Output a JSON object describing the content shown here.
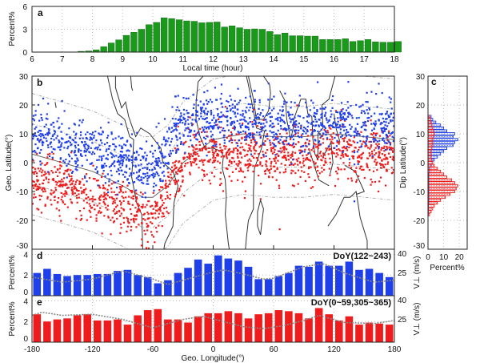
{
  "colors": {
    "green": "#1a9a1a",
    "blue": "#1f3fe8",
    "red": "#ee1c1c",
    "curve": "#888888",
    "coast": "#333333"
  },
  "chart_data": [
    {
      "id": "a",
      "type": "bar",
      "panel_label": "a",
      "xlabel": "Local time (hour)",
      "ylabel": "Percent%",
      "xlim": [
        6,
        18
      ],
      "ylim": [
        0,
        6
      ],
      "xticks": [
        "6",
        "7",
        "8",
        "9",
        "10",
        "11",
        "12",
        "13",
        "14",
        "15",
        "16",
        "17",
        "18"
      ],
      "yticks": [
        "0",
        "3",
        "6"
      ],
      "bin_width_hours": 0.25,
      "x_start": 7.5,
      "values": [
        0.1,
        0.15,
        0.3,
        0.7,
        1.2,
        1.6,
        2.2,
        2.6,
        3.0,
        3.6,
        3.9,
        4.5,
        4.4,
        4.25,
        4.1,
        4.05,
        3.85,
        3.9,
        3.95,
        3.3,
        3.45,
        3.2,
        3.0,
        3.05,
        3.0,
        2.7,
        2.3,
        2.5,
        2.15,
        2.15,
        2.1,
        2.1,
        1.65,
        1.65,
        1.65,
        1.75,
        1.4,
        1.5,
        1.65,
        1.35,
        1.3,
        1.3,
        1.4
      ]
    },
    {
      "id": "b",
      "type": "scatter",
      "panel_label": "b",
      "ylabel": "Geo. Latitude(°)",
      "xlim": [
        -180,
        180
      ],
      "ylim": [
        -30,
        30
      ],
      "yticks": [
        "-30",
        "-20",
        "-10",
        "0",
        "10",
        "20",
        "30"
      ],
      "series": [
        {
          "name": "DoY(122~243)",
          "color": "blue",
          "band_center": {
            "lon": [
              -180,
              -150,
              -120,
              -90,
              -70,
              -60,
              -50,
              -40,
              -20,
              0,
              30,
              60,
              90,
              120,
              150,
              180
            ],
            "lat": [
              10,
              7,
              4,
              1,
              -3,
              -4,
              2,
              12,
              15,
              15,
              14,
              13,
              13,
              14,
              13,
              12
            ]
          },
          "spread_deg": 4.5
        },
        {
          "name": "DoY(0~59,305~365)",
          "color": "red",
          "band_center": {
            "lon": [
              -180,
              -150,
              -120,
              -90,
              -70,
              -60,
              -50,
              -40,
              -20,
              0,
              30,
              60,
              90,
              120,
              150,
              180
            ],
            "lat": [
              -6,
              -9,
              -12,
              -15,
              -19,
              -20,
              -14,
              -4,
              2,
              4,
              3,
              2,
              3,
              4,
              3,
              2
            ]
          },
          "spread_deg": 4.5
        }
      ],
      "dip_equator": {
        "lon": [
          -180,
          -150,
          -120,
          -90,
          -70,
          -60,
          -45,
          -30,
          0,
          30,
          60,
          90,
          120,
          150,
          180
        ],
        "lat": [
          3,
          0,
          -3,
          -8,
          -12,
          -12,
          -8,
          0,
          8,
          10,
          9,
          9,
          10,
          9,
          8
        ]
      }
    },
    {
      "id": "c",
      "type": "bar",
      "orientation": "horizontal",
      "panel_label": "c",
      "ylabel": "Dip Latitude(°)",
      "xlabel": "Percent%",
      "xlim": [
        0,
        25
      ],
      "ylim": [
        -30,
        30
      ],
      "xticks": [
        "0",
        "10",
        "20"
      ],
      "yticks": [
        "-30",
        "-20",
        "-10",
        "0",
        "10",
        "20",
        "30"
      ],
      "lat": [
        16,
        15,
        14,
        13,
        12,
        11,
        10,
        9,
        8,
        7,
        6,
        5,
        4,
        3,
        2,
        1,
        0,
        -1,
        -2,
        -3,
        -4,
        -5,
        -6,
        -7,
        -8,
        -9,
        -10,
        -11,
        -12,
        -13,
        -14,
        -15,
        -16,
        -17,
        -18
      ],
      "series": [
        {
          "name": "blue",
          "values": [
            2,
            3,
            5,
            8,
            10,
            12,
            17,
            16,
            19,
            17,
            16,
            12,
            10,
            8,
            6,
            4,
            3,
            2,
            1,
            1,
            0.5,
            0.5,
            0.5,
            0.5,
            0.5,
            0.5,
            0.5,
            0.5,
            0.5,
            0.5,
            0.5,
            0.3,
            0.3,
            0.2,
            0.2
          ]
        },
        {
          "name": "red",
          "values": [
            1,
            1.5,
            2,
            2.5,
            3,
            3.5,
            4,
            3.5,
            3,
            3,
            3,
            2.5,
            2,
            2,
            2,
            2.5,
            3,
            4,
            6,
            8,
            10,
            12,
            15,
            17,
            19,
            18,
            17,
            14,
            11,
            8,
            6,
            4,
            3,
            2,
            1
          ]
        }
      ]
    },
    {
      "id": "d",
      "type": "bar",
      "panel_label": "d",
      "title": "DoY(122~243)",
      "ylabel": "Percent%",
      "right_ylabel": "V⊥ (m/s)",
      "xlim": [
        -180,
        180
      ],
      "ylim": [
        0,
        4.5
      ],
      "right_ylim": [
        10,
        40
      ],
      "yticks": [
        "0",
        "2",
        "4"
      ],
      "right_yticks": [
        "25",
        "40"
      ],
      "bin_width_deg": 10,
      "values": [
        2.2,
        2.6,
        2.1,
        1.9,
        2.0,
        2.0,
        2.1,
        2.1,
        2.4,
        2.5,
        2.0,
        1.8,
        1.2,
        1.5,
        2.2,
        2.7,
        3.5,
        3.1,
        3.9,
        3.6,
        3.4,
        2.8,
        1.6,
        1.6,
        1.9,
        2.2,
        2.9,
        2.8,
        3.3,
        2.9,
        2.9,
        3.3,
        2.5,
        2.6,
        2.2,
        1.8
      ],
      "v_perp": {
        "lon": [
          -180,
          -150,
          -120,
          -90,
          -60,
          -45,
          -30,
          0,
          10,
          30,
          50,
          60,
          90,
          110,
          130,
          160,
          180
        ],
        "v": [
          22,
          18.7,
          20.7,
          26,
          20.7,
          17.3,
          20,
          25.3,
          26.7,
          24,
          20.7,
          21.3,
          28.7,
          30.7,
          24.7,
          18.7,
          20
        ]
      }
    },
    {
      "id": "e",
      "type": "bar",
      "panel_label": "e",
      "title": "DoY(0~59,305~365)",
      "ylabel": "Percent%",
      "right_ylabel": "V⊥ (m/s)",
      "xlabel": "Geo. Longitude(°)",
      "xlim": [
        -180,
        180
      ],
      "ylim": [
        0,
        4.5
      ],
      "right_ylim": [
        10,
        40
      ],
      "yticks": [
        "0",
        "2",
        "4"
      ],
      "right_yticks": [
        "25",
        "40"
      ],
      "xticks": [
        "-180",
        "-120",
        "-60",
        "0",
        "60",
        "120",
        "180"
      ],
      "bin_width_deg": 10,
      "values": [
        2.7,
        2.0,
        2.2,
        2.3,
        2.6,
        2.7,
        2.1,
        2.1,
        2.2,
        1.7,
        2.6,
        3.1,
        3.2,
        2.2,
        2.2,
        1.9,
        2.5,
        2.8,
        2.8,
        3.0,
        2.8,
        2.3,
        2.7,
        2.8,
        3.1,
        3.0,
        2.8,
        2.3,
        3.3,
        2.7,
        2.1,
        2.5,
        1.7,
        1.9,
        1.8,
        1.7
      ],
      "v_perp": {
        "lon": [
          -180,
          -170,
          -150,
          -120,
          -90,
          -60,
          -30,
          -10,
          10,
          30,
          50,
          70,
          90,
          105,
          130,
          160,
          180
        ],
        "v": [
          27.3,
          29.3,
          27.3,
          28,
          24.7,
          19.3,
          24.7,
          26.7,
          23.3,
          20,
          18.7,
          20.7,
          24,
          27.3,
          22.7,
          22,
          24
        ]
      }
    }
  ]
}
